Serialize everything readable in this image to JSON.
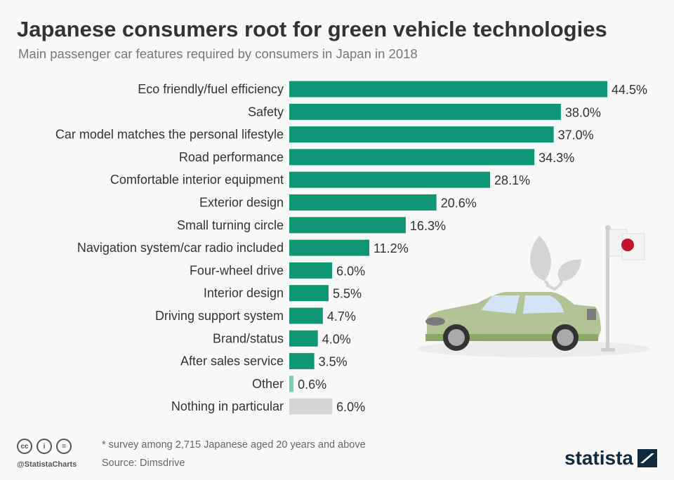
{
  "title": "Japanese consumers root for green vehicle technologies",
  "subtitle": "Main passenger car features required by consumers in Japan in 2018",
  "footer": {
    "note": "* survey among 2,715 Japanese aged 20 years and above",
    "source": "Source: Dimsdrive",
    "handle": "@StatistaCharts",
    "logo": "statista",
    "license_icons": [
      "cc-icon",
      "attribution-icon",
      "no-derivatives-icon"
    ]
  },
  "colors": {
    "main": "#0f9775",
    "other": "#7ecab4",
    "nothing": "#d6d6d6"
  },
  "chart_data": {
    "type": "bar",
    "orientation": "horizontal",
    "unit": "%",
    "categories": [
      "Eco friendly/fuel efficiency",
      "Safety",
      "Car model matches the personal lifestyle",
      "Road performance",
      "Comfortable interior equipment",
      "Exterior design",
      "Small turning circle",
      "Navigation system/car radio included",
      "Four-wheel drive",
      "Interior design",
      "Driving support system",
      "Brand/status",
      "After sales service",
      "Other",
      "Nothing in particular"
    ],
    "values": [
      44.5,
      38.0,
      37.0,
      34.3,
      28.1,
      20.6,
      16.3,
      11.2,
      6.0,
      5.5,
      4.7,
      4.0,
      3.5,
      0.6,
      6.0
    ],
    "labels": [
      "44.5%",
      "38.0%",
      "37.0%",
      "34.3%",
      "28.1%",
      "20.6%",
      "16.3%",
      "11.2%",
      "6.0%",
      "5.5%",
      "4.7%",
      "4.0%",
      "3.5%",
      "0.6%",
      "6.0%"
    ],
    "xlim": [
      0,
      44.5
    ],
    "grid": false,
    "legend": "none"
  }
}
